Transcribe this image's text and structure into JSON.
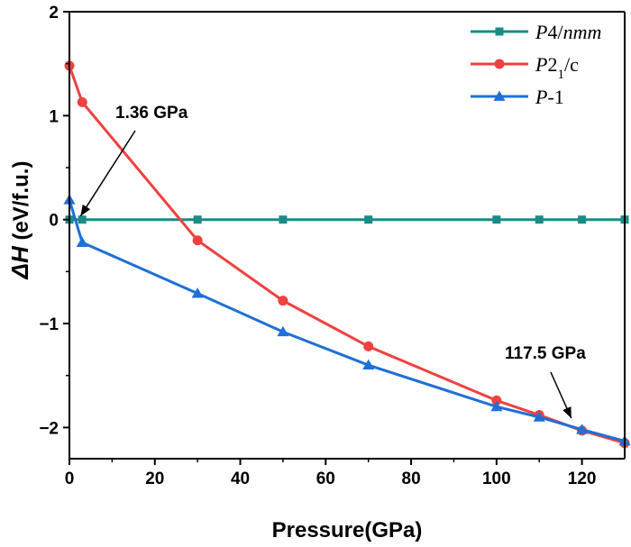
{
  "chart_data": {
    "type": "line",
    "xlabel": "Pressure(GPa)",
    "ylabel_prefix": "ΔH",
    "ylabel_suffix": " (eV/f.u.)",
    "xlim": [
      0,
      130
    ],
    "ylim": [
      -2.3,
      2
    ],
    "xticks": [
      0,
      20,
      40,
      60,
      80,
      100,
      120
    ],
    "yticks": [
      2,
      1,
      0,
      -1,
      -2
    ],
    "grid": false,
    "legend_placement": "top-right",
    "series": [
      {
        "name": "P4/nmm",
        "name_parts": [
          {
            "t": "P",
            "italic": true
          },
          {
            "t": "4/",
            "italic": false
          },
          {
            "t": "nmm",
            "italic": true
          }
        ],
        "color": "#1a8c86",
        "marker": "square",
        "x": [
          0,
          3,
          30,
          50,
          70,
          100,
          110,
          120,
          130
        ],
        "y": [
          0,
          0,
          0,
          0,
          0,
          0,
          0,
          0,
          0
        ]
      },
      {
        "name": "P21/c",
        "name_parts": [
          {
            "t": "P",
            "italic": true
          },
          {
            "t": "2",
            "italic": false
          },
          {
            "t": "1",
            "italic": false,
            "sub": true
          },
          {
            "t": "/c",
            "italic": false
          }
        ],
        "color": "#ef4141",
        "marker": "circle",
        "x": [
          0,
          3,
          30,
          50,
          70,
          100,
          110,
          120,
          130
        ],
        "y": [
          1.48,
          1.13,
          -0.2,
          -0.78,
          -1.22,
          -1.74,
          -1.88,
          -2.03,
          -2.15
        ]
      },
      {
        "name": "P-1",
        "name_parts": [
          {
            "t": "P",
            "italic": true
          },
          {
            "t": "-1",
            "italic": false
          }
        ],
        "color": "#1f6fd6",
        "marker": "triangle",
        "x": [
          0,
          3,
          30,
          50,
          70,
          100,
          110,
          120,
          130
        ],
        "y": [
          0.19,
          -0.22,
          -0.71,
          -1.08,
          -1.4,
          -1.8,
          -1.9,
          -2.02,
          -2.13
        ]
      }
    ],
    "annotations": [
      {
        "text": "1.36 GPa",
        "point": [
          1.36,
          0
        ]
      },
      {
        "text": "117.5 GPa",
        "point": [
          117.5,
          -1.98
        ]
      }
    ]
  }
}
